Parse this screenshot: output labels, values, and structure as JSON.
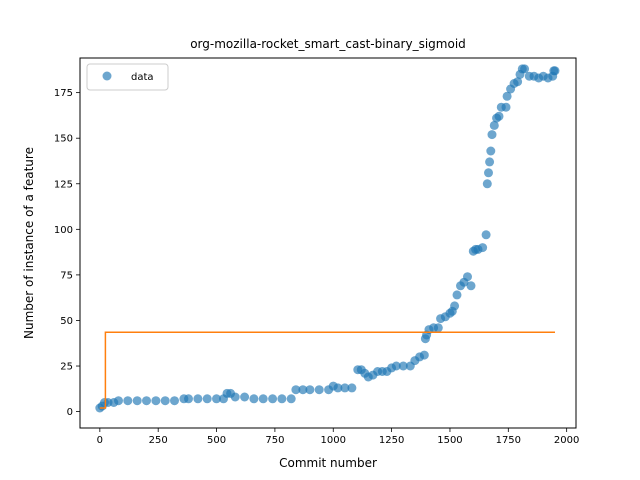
{
  "chart_data": {
    "type": "scatter",
    "title": "org-mozilla-rocket_smart_cast-binary_sigmoid",
    "xlabel": "Commit number",
    "ylabel": "Number of instance of a feature",
    "xlim": [
      -85,
      2040
    ],
    "ylim": [
      -9,
      194
    ],
    "xticks": [
      0,
      250,
      500,
      750,
      1000,
      1250,
      1500,
      1750,
      2000
    ],
    "yticks": [
      0,
      25,
      50,
      75,
      100,
      125,
      150,
      175
    ],
    "xtick_labels": [
      "0",
      "250",
      "500",
      "750",
      "1000",
      "1250",
      "1500",
      "1750",
      "2000"
    ],
    "ytick_labels": [
      "0",
      "25",
      "50",
      "75",
      "100",
      "125",
      "150",
      "175"
    ],
    "grid": false,
    "legend": {
      "position": "top-left",
      "entries": [
        "data"
      ]
    },
    "colors": {
      "data": "#1f77b4",
      "fit": "#ff7f0e"
    },
    "series": [
      {
        "name": "data",
        "kind": "scatter",
        "points": [
          [
            0,
            2
          ],
          [
            10,
            3
          ],
          [
            20,
            5
          ],
          [
            35,
            5
          ],
          [
            60,
            5
          ],
          [
            80,
            6
          ],
          [
            120,
            6
          ],
          [
            160,
            6
          ],
          [
            200,
            6
          ],
          [
            240,
            6
          ],
          [
            280,
            6
          ],
          [
            320,
            6
          ],
          [
            360,
            7
          ],
          [
            380,
            7
          ],
          [
            420,
            7
          ],
          [
            460,
            7
          ],
          [
            500,
            7
          ],
          [
            530,
            7
          ],
          [
            545,
            10
          ],
          [
            560,
            10
          ],
          [
            580,
            8
          ],
          [
            620,
            8
          ],
          [
            660,
            7
          ],
          [
            700,
            7
          ],
          [
            740,
            7
          ],
          [
            780,
            7
          ],
          [
            820,
            7
          ],
          [
            840,
            12
          ],
          [
            870,
            12
          ],
          [
            900,
            12
          ],
          [
            940,
            12
          ],
          [
            980,
            12
          ],
          [
            1000,
            14
          ],
          [
            1020,
            13
          ],
          [
            1050,
            13
          ],
          [
            1080,
            13
          ],
          [
            1105,
            23
          ],
          [
            1120,
            23
          ],
          [
            1135,
            21
          ],
          [
            1150,
            19
          ],
          [
            1170,
            20
          ],
          [
            1190,
            22
          ],
          [
            1210,
            22
          ],
          [
            1230,
            22
          ],
          [
            1250,
            24
          ],
          [
            1270,
            25
          ],
          [
            1300,
            25
          ],
          [
            1330,
            25
          ],
          [
            1350,
            28
          ],
          [
            1370,
            30
          ],
          [
            1390,
            31
          ],
          [
            1395,
            40
          ],
          [
            1400,
            42
          ],
          [
            1410,
            45
          ],
          [
            1430,
            46
          ],
          [
            1450,
            46
          ],
          [
            1460,
            51
          ],
          [
            1480,
            52
          ],
          [
            1500,
            54
          ],
          [
            1510,
            55
          ],
          [
            1520,
            58
          ],
          [
            1530,
            64
          ],
          [
            1545,
            69
          ],
          [
            1560,
            71
          ],
          [
            1575,
            74
          ],
          [
            1590,
            69
          ],
          [
            1600,
            88
          ],
          [
            1610,
            89
          ],
          [
            1620,
            89
          ],
          [
            1640,
            90
          ],
          [
            1655,
            97
          ],
          [
            1660,
            125
          ],
          [
            1665,
            131
          ],
          [
            1670,
            137
          ],
          [
            1675,
            143
          ],
          [
            1680,
            152
          ],
          [
            1690,
            157
          ],
          [
            1700,
            161
          ],
          [
            1710,
            162
          ],
          [
            1720,
            167
          ],
          [
            1740,
            167
          ],
          [
            1745,
            173
          ],
          [
            1760,
            177
          ],
          [
            1775,
            180
          ],
          [
            1790,
            181
          ],
          [
            1800,
            185
          ],
          [
            1810,
            188
          ],
          [
            1820,
            188
          ],
          [
            1840,
            184
          ],
          [
            1860,
            184
          ],
          [
            1880,
            183
          ],
          [
            1900,
            184
          ],
          [
            1920,
            183
          ],
          [
            1940,
            184
          ],
          [
            1945,
            187
          ],
          [
            1950,
            187
          ]
        ]
      },
      {
        "name": "",
        "kind": "line",
        "points": [
          [
            0,
            2
          ],
          [
            24,
            2
          ],
          [
            24,
            43.5
          ],
          [
            1950,
            43.5
          ]
        ]
      }
    ]
  }
}
